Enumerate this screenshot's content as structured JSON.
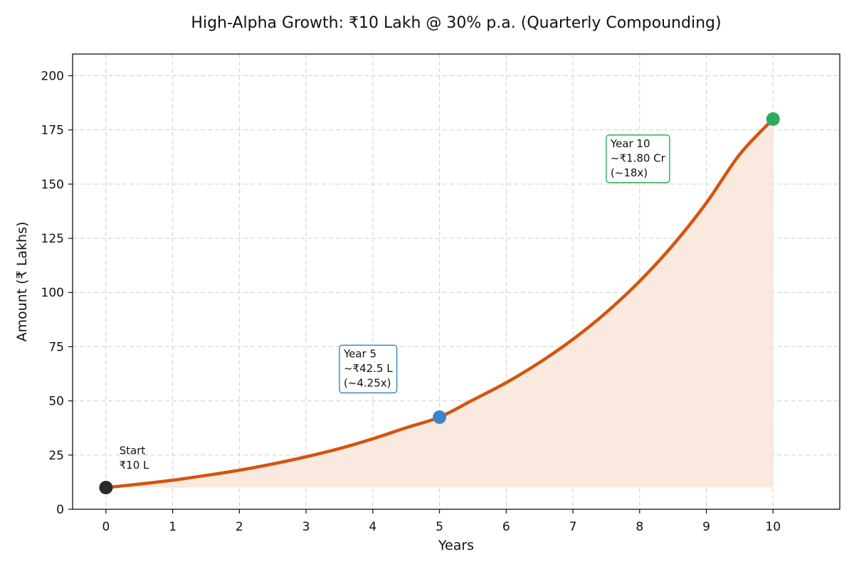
{
  "chart_data": {
    "type": "line",
    "title": "High-Alpha Growth: ₹10 Lakh @ 30% p.a. (Quarterly Compounding)",
    "xlabel": "Years",
    "ylabel": "Amount (₹ Lakhs)",
    "xlim": [
      -0.5,
      11
    ],
    "ylim": [
      0,
      210
    ],
    "xticks": [
      0,
      1,
      2,
      3,
      4,
      5,
      6,
      7,
      8,
      9,
      10
    ],
    "yticks": [
      0,
      25,
      50,
      75,
      100,
      125,
      150,
      175,
      200
    ],
    "grid": true,
    "series": [
      {
        "name": "Growth curve",
        "x": [
          0,
          0.5,
          1,
          1.5,
          2,
          2.5,
          3,
          3.5,
          4,
          4.5,
          5,
          5.5,
          6,
          6.5,
          7,
          7.5,
          8,
          8.5,
          9,
          9.5,
          10
        ],
        "y": [
          10,
          11.6,
          13.4,
          15.6,
          18.0,
          20.9,
          24.2,
          28.0,
          32.5,
          37.6,
          42.5,
          50.4,
          58.4,
          67.7,
          78.4,
          90.8,
          105.2,
          121.9,
          141.3,
          163.7,
          180.0
        ],
        "color": "#d2550f",
        "fill": "#f9e9df"
      }
    ],
    "markers": [
      {
        "name": "start",
        "x": 0,
        "y": 10,
        "color": "#2b2b2b"
      },
      {
        "name": "year-5",
        "x": 5,
        "y": 42.5,
        "color": "#3a86c8"
      },
      {
        "name": "year-10",
        "x": 10,
        "y": 180,
        "color": "#2eaa5c"
      }
    ],
    "annotations": [
      {
        "name": "start",
        "lines": [
          "Start",
          "₹10 L"
        ],
        "x": 0.2,
        "y": 17,
        "boxed": false
      },
      {
        "name": "year-5",
        "lines": [
          "Year 5",
          "~₹42.5 L",
          "(~4.25x)"
        ],
        "x": 3.5,
        "y": 55,
        "boxed": true,
        "color": "#3a86c8"
      },
      {
        "name": "year-10",
        "lines": [
          "Year 10",
          "~₹1.80 Cr",
          "(~18x)"
        ],
        "x": 7.5,
        "y": 152,
        "boxed": true,
        "color": "#2eaa5c"
      }
    ]
  }
}
